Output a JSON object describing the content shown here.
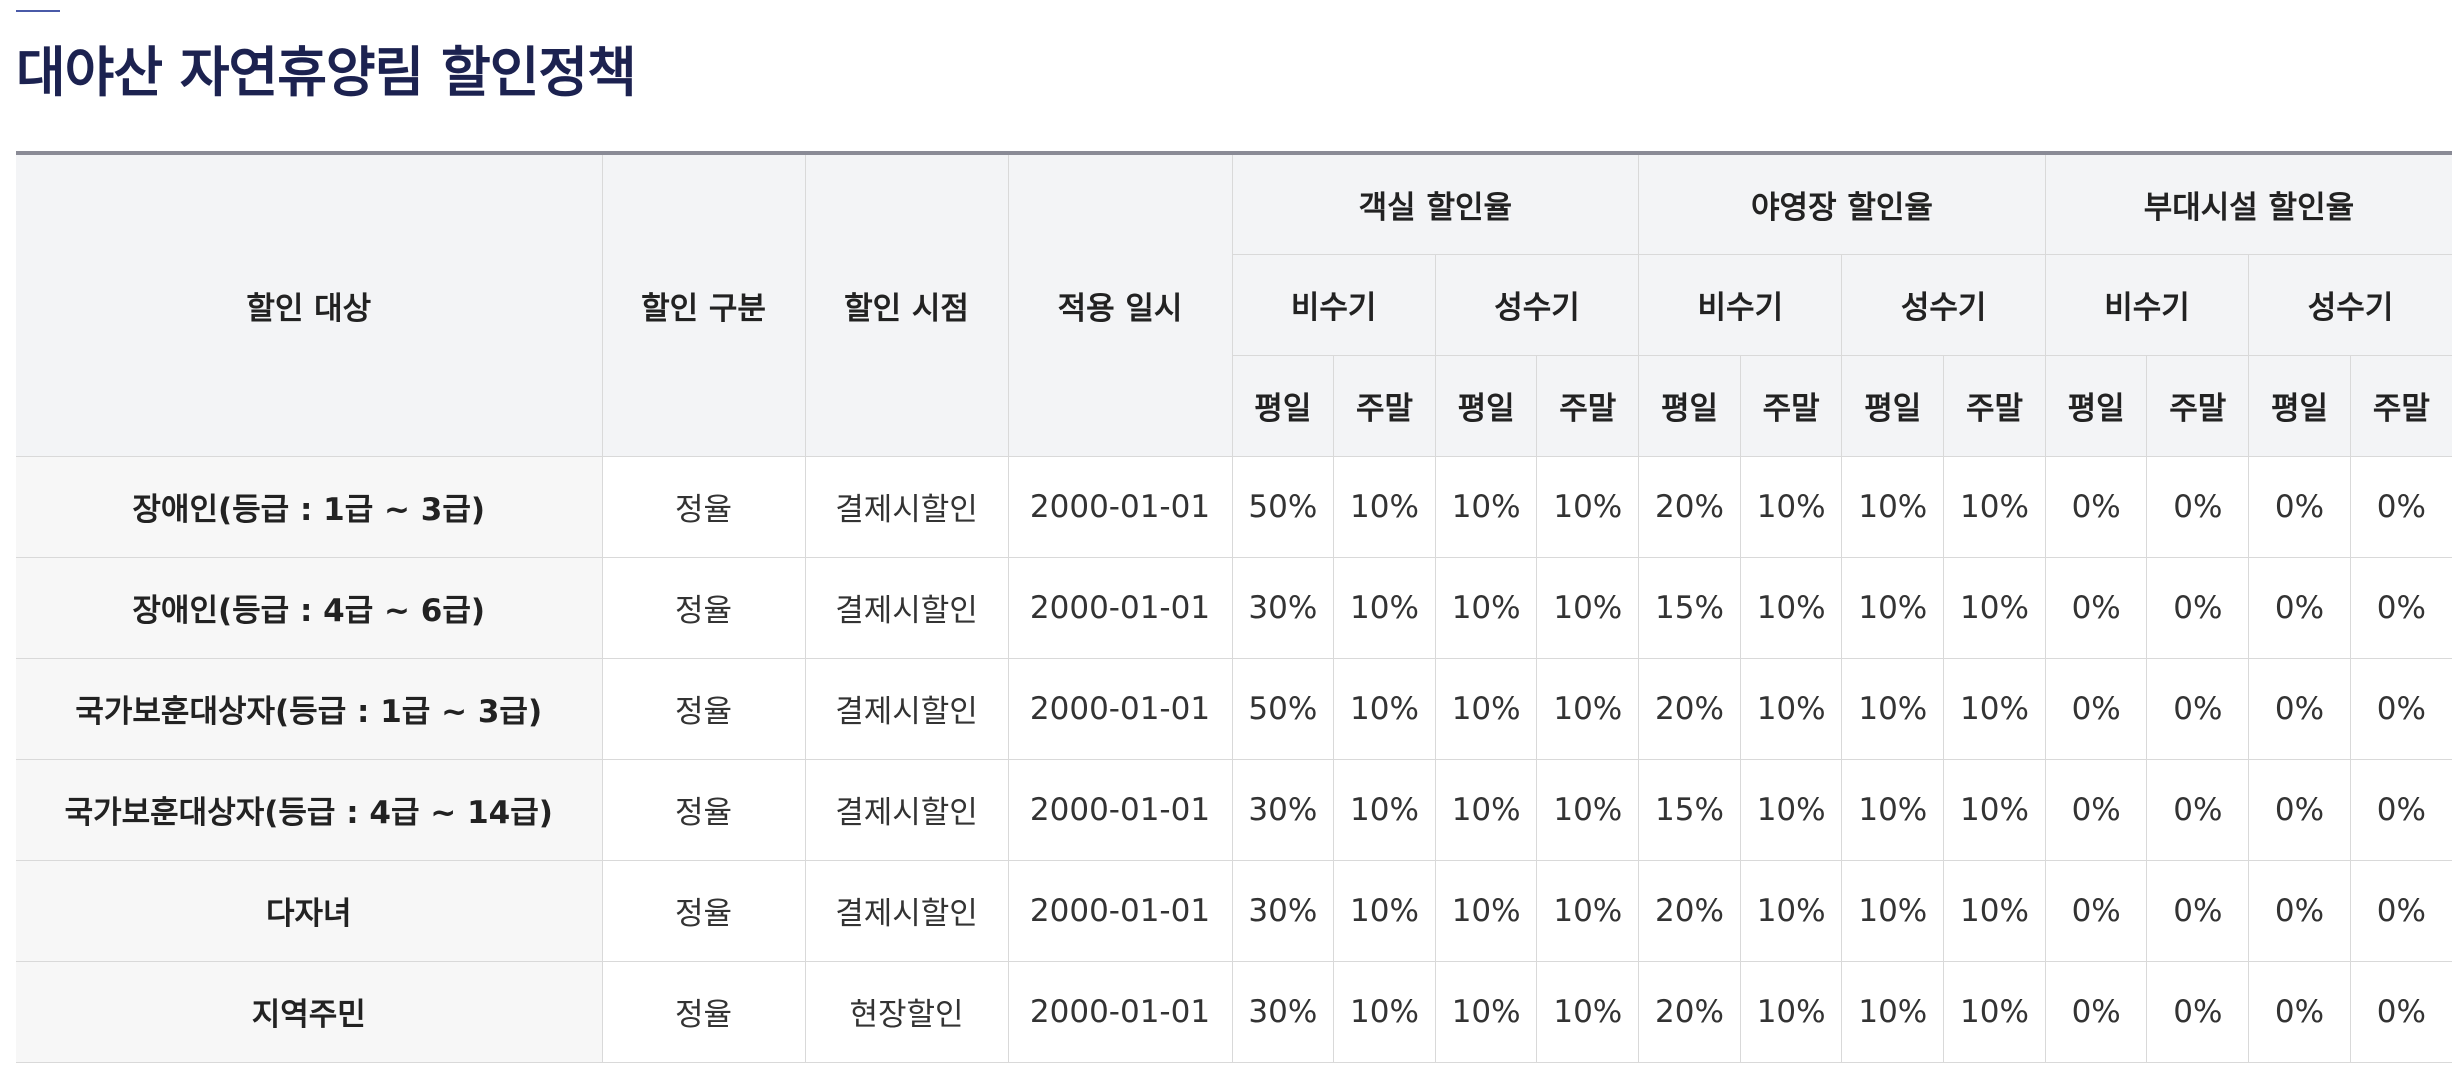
{
  "page": {
    "title": "대야산 자연휴양림 할인정책"
  },
  "table": {
    "headers": {
      "target": "할인 대상",
      "type": "할인 구분",
      "timing": "할인 시점",
      "date": "적용 일시",
      "groups": [
        "객실 할인율",
        "야영장 할인율",
        "부대시설 할인율"
      ],
      "seasons": [
        "비수기",
        "성수기"
      ],
      "days": [
        "평일",
        "주말"
      ]
    },
    "rows": [
      {
        "target": "장애인(등급 : 1급 ~ 3급)",
        "type": "정율",
        "timing": "결제시할인",
        "date": "2000-01-01",
        "rates": [
          "50%",
          "10%",
          "10%",
          "10%",
          "20%",
          "10%",
          "10%",
          "10%",
          "0%",
          "0%",
          "0%",
          "0%"
        ]
      },
      {
        "target": "장애인(등급 : 4급 ~ 6급)",
        "type": "정율",
        "timing": "결제시할인",
        "date": "2000-01-01",
        "rates": [
          "30%",
          "10%",
          "10%",
          "10%",
          "15%",
          "10%",
          "10%",
          "10%",
          "0%",
          "0%",
          "0%",
          "0%"
        ]
      },
      {
        "target": "국가보훈대상자(등급 : 1급 ~ 3급)",
        "type": "정율",
        "timing": "결제시할인",
        "date": "2000-01-01",
        "rates": [
          "50%",
          "10%",
          "10%",
          "10%",
          "20%",
          "10%",
          "10%",
          "10%",
          "0%",
          "0%",
          "0%",
          "0%"
        ]
      },
      {
        "target": "국가보훈대상자(등급 : 4급 ~ 14급)",
        "type": "정율",
        "timing": "결제시할인",
        "date": "2000-01-01",
        "rates": [
          "30%",
          "10%",
          "10%",
          "10%",
          "15%",
          "10%",
          "10%",
          "10%",
          "0%",
          "0%",
          "0%",
          "0%"
        ]
      },
      {
        "target": "다자녀",
        "type": "정율",
        "timing": "결제시할인",
        "date": "2000-01-01",
        "rates": [
          "30%",
          "10%",
          "10%",
          "10%",
          "20%",
          "10%",
          "10%",
          "10%",
          "0%",
          "0%",
          "0%",
          "0%"
        ]
      },
      {
        "target": "지역주민",
        "type": "정율",
        "timing": "현장할인",
        "date": "2000-01-01",
        "rates": [
          "30%",
          "10%",
          "10%",
          "10%",
          "20%",
          "10%",
          "10%",
          "10%",
          "0%",
          "0%",
          "0%",
          "0%"
        ]
      }
    ]
  },
  "colors": {
    "title": "#1c2250",
    "header_bg": "#f3f4f6",
    "border": "#d9d9d9",
    "top_rule": "#8a8b96"
  }
}
